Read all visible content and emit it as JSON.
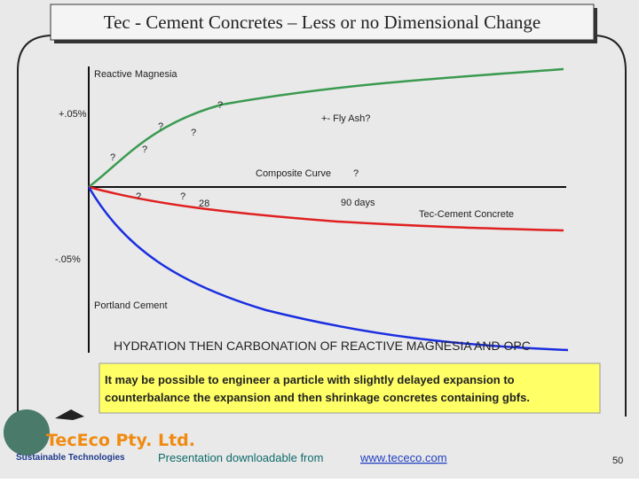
{
  "header": {
    "title": "Tec - Cement Concretes – Less or no Dimensional Change"
  },
  "diagram": {
    "labels": [
      "Reactive Magnesia",
      "?",
      "+.05%",
      "?",
      "?",
      "+- Fly Ash?",
      "?",
      "?",
      "Composite Curve",
      "?",
      "?",
      "?",
      "28",
      "90 days",
      "Tec-Cement Concrete",
      "-.05%",
      "Portland Cement"
    ],
    "caption": "HYDRATION THEN CARBONATION OF REACTIVE MAGNESIA AND OPC"
  },
  "note": {
    "lines": [
      "It may be possible to engineer a particle with slightly delayed expansion to",
      "counterbalance the expansion and then shrinkage concretes containing gbfs."
    ]
  },
  "footer": {
    "logo": "TecEco Pty. Ltd.",
    "tagline": "Sustainable Technologies",
    "download_text": "Presentation downloadable from",
    "link": "www.tececo.com",
    "page": "50"
  }
}
